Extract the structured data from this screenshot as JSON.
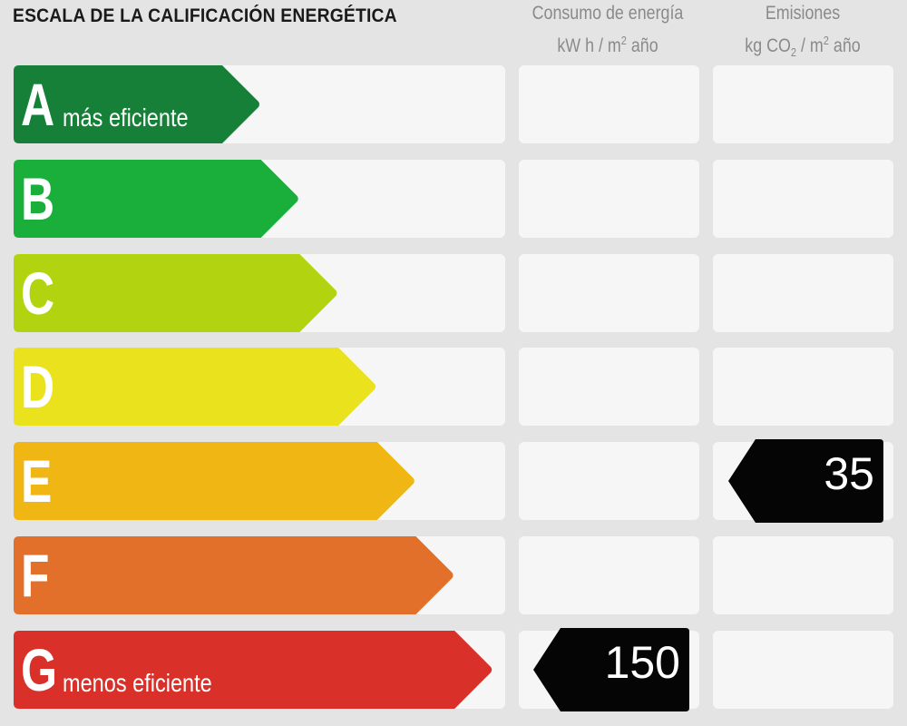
{
  "title": "ESCALA DE LA CALIFICACIÓN ENERGÉTICA",
  "columns": {
    "consumo": {
      "line1": "Consumo de energía",
      "line2_pre": "kW h / m",
      "line2_sup": "2",
      "line2_post": " año"
    },
    "emisiones": {
      "line1": "Emisiones",
      "line2_pre": "kg CO",
      "line2_sub": "2",
      "line2_mid": " / m",
      "line2_sup": "2",
      "line2_post": " año"
    }
  },
  "ratings": [
    {
      "letter": "A",
      "subtitle": "más eficiente",
      "color": "#168038"
    },
    {
      "letter": "B",
      "subtitle": "",
      "color": "#1aae3a"
    },
    {
      "letter": "C",
      "subtitle": "",
      "color": "#b2d30f"
    },
    {
      "letter": "D",
      "subtitle": "",
      "color": "#eae21c"
    },
    {
      "letter": "E",
      "subtitle": "",
      "color": "#f0b614"
    },
    {
      "letter": "F",
      "subtitle": "",
      "color": "#e2702a"
    },
    {
      "letter": "G",
      "subtitle": "menos eficiente",
      "color": "#d9312a"
    }
  ],
  "consumo_marker": {
    "rating": "G",
    "value": "150"
  },
  "emisiones_marker": {
    "rating": "E",
    "value": "35"
  }
}
